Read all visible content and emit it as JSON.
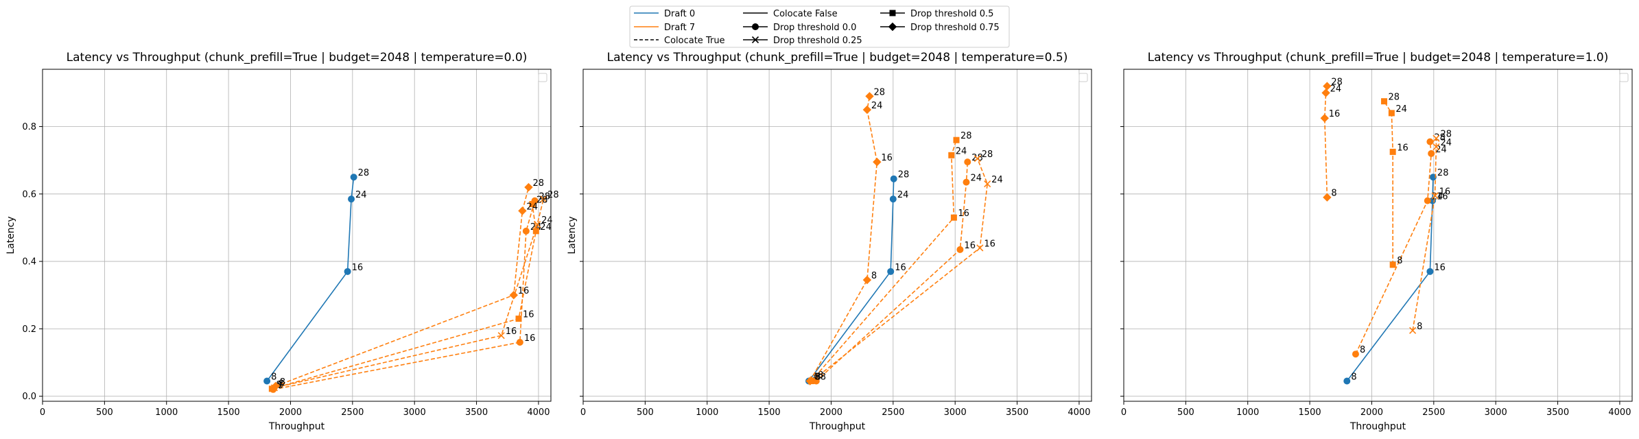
{
  "colors": {
    "draft0": "#1f77b4",
    "draft7": "#ff7f0e",
    "grid": "#b0b0b0",
    "axis": "#000000"
  },
  "legend": {
    "placement": "top-center",
    "items": [
      {
        "label": "Draft 0",
        "kind": "line",
        "color": "#1f77b4",
        "dash": false,
        "marker": null
      },
      {
        "label": "Draft 7",
        "kind": "line",
        "color": "#ff7f0e",
        "dash": false,
        "marker": null
      },
      {
        "label": "Colocate True",
        "kind": "line",
        "color": "#000000",
        "dash": true,
        "marker": null
      },
      {
        "label": "Colocate False",
        "kind": "line",
        "color": "#000000",
        "dash": false,
        "marker": null
      },
      {
        "label": "Drop threshold 0.0",
        "kind": "line",
        "color": "#000000",
        "dash": false,
        "marker": "circle"
      },
      {
        "label": "Drop threshold 0.25",
        "kind": "line",
        "color": "#000000",
        "dash": false,
        "marker": "x"
      },
      {
        "label": "Drop threshold 0.5",
        "kind": "line",
        "color": "#000000",
        "dash": false,
        "marker": "square"
      },
      {
        "label": "Drop threshold 0.75",
        "kind": "line",
        "color": "#000000",
        "dash": false,
        "marker": "diamond"
      }
    ]
  },
  "chart_data": [
    {
      "type": "line",
      "title": "Latency vs Throughput (chunk_prefill=True | budget=2048 | temperature=0.0)",
      "xlabel": "Throughput",
      "ylabel": "Latency",
      "xlim": [
        0,
        4100
      ],
      "ylim": [
        -0.015,
        0.97
      ],
      "xticks": [
        0,
        500,
        1000,
        1500,
        2000,
        2500,
        3000,
        3500,
        4000
      ],
      "yticks": [
        0.0,
        0.2,
        0.4,
        0.6,
        0.8
      ],
      "ytick_labels": [
        "0.0",
        "0.2",
        "0.4",
        "0.6",
        "0.8"
      ],
      "show_ylabel": true,
      "show_yticklabels": true,
      "grid": true,
      "series": [
        {
          "color": "draft0",
          "dashed": false,
          "marker": "circle",
          "points": [
            [
              1810,
              0.045
            ],
            [
              2460,
              0.37
            ],
            [
              2490,
              0.585
            ],
            [
              2510,
              0.65
            ]
          ],
          "labels": [
            "8",
            "16",
            "24",
            "28"
          ]
        },
        {
          "color": "draft7",
          "dashed": true,
          "marker": "circle",
          "points": [
            [
              1860,
              0.02
            ],
            [
              3850,
              0.16
            ],
            [
              3900,
              0.49
            ],
            [
              3970,
              0.58
            ]
          ],
          "labels": [
            "8",
            "16",
            "24",
            "28"
          ]
        },
        {
          "color": "draft7",
          "dashed": true,
          "marker": "x",
          "points": [
            [
              1870,
              0.025
            ],
            [
              3700,
              0.18
            ],
            [
              3990,
              0.51
            ],
            [
              4040,
              0.585
            ]
          ],
          "labels": [
            "8",
            "16",
            "24",
            "28"
          ]
        },
        {
          "color": "draft7",
          "dashed": true,
          "marker": "square",
          "points": [
            [
              1850,
              0.022
            ],
            [
              3840,
              0.23
            ],
            [
              3980,
              0.49
            ],
            [
              3950,
              0.57
            ]
          ],
          "labels": [
            "8",
            "16",
            "24",
            "28"
          ]
        },
        {
          "color": "draft7",
          "dashed": true,
          "marker": "diamond",
          "points": [
            [
              1880,
              0.03
            ],
            [
              3800,
              0.3
            ],
            [
              3870,
              0.55
            ],
            [
              3920,
              0.62
            ]
          ],
          "labels": [
            "8",
            "16",
            "24",
            "28"
          ]
        }
      ]
    },
    {
      "type": "line",
      "title": "Latency vs Throughput (chunk_prefill=True | budget=2048 | temperature=0.5)",
      "xlabel": "Throughput",
      "ylabel": "Latency",
      "xlim": [
        0,
        4100
      ],
      "ylim": [
        -0.015,
        0.97
      ],
      "xticks": [
        0,
        500,
        1000,
        1500,
        2000,
        2500,
        3000,
        3500,
        4000
      ],
      "yticks": [
        0.0,
        0.2,
        0.4,
        0.6,
        0.8
      ],
      "ytick_labels": [],
      "show_ylabel": true,
      "show_yticklabels": false,
      "grid": true,
      "series": [
        {
          "color": "draft0",
          "dashed": false,
          "marker": "circle",
          "points": [
            [
              1820,
              0.045
            ],
            [
              2480,
              0.37
            ],
            [
              2500,
              0.585
            ],
            [
              2505,
              0.645
            ]
          ],
          "labels": [
            "8",
            "16",
            "24",
            "28"
          ]
        },
        {
          "color": "draft7",
          "dashed": true,
          "marker": "circle",
          "points": [
            [
              1880,
              0.045
            ],
            [
              3040,
              0.435
            ],
            [
              3090,
              0.635
            ],
            [
              3100,
              0.695
            ]
          ],
          "labels": [
            "8",
            "16",
            "24",
            "28"
          ]
        },
        {
          "color": "draft7",
          "dashed": true,
          "marker": "x",
          "points": [
            [
              1860,
              0.05
            ],
            [
              3200,
              0.44
            ],
            [
              3260,
              0.63
            ],
            [
              3180,
              0.705
            ]
          ],
          "labels": [
            "8",
            "16",
            "24",
            "28"
          ]
        },
        {
          "color": "draft7",
          "dashed": true,
          "marker": "square",
          "points": [
            [
              1840,
              0.045
            ],
            [
              2990,
              0.53
            ],
            [
              2970,
              0.715
            ],
            [
              3010,
              0.76
            ]
          ],
          "labels": [
            "8",
            "16",
            "24",
            "28"
          ]
        },
        {
          "color": "draft7",
          "dashed": true,
          "marker": "diamond",
          "points": [
            [
              1830,
              0.045
            ],
            [
              2290,
              0.345
            ],
            [
              2370,
              0.695
            ],
            [
              2290,
              0.85
            ],
            [
              2310,
              0.89
            ]
          ],
          "labels": [
            "8",
            "8",
            "16",
            "24",
            "28"
          ]
        }
      ]
    },
    {
      "type": "line",
      "title": "Latency vs Throughput (chunk_prefill=True | budget=2048 | temperature=1.0)",
      "xlabel": "Throughput",
      "ylabel": "Latency",
      "xlim": [
        0,
        4100
      ],
      "ylim": [
        -0.015,
        0.97
      ],
      "xticks": [
        0,
        500,
        1000,
        1500,
        2000,
        2500,
        3000,
        3500,
        4000
      ],
      "yticks": [
        0.0,
        0.2,
        0.4,
        0.6,
        0.8
      ],
      "ytick_labels": [],
      "show_ylabel": false,
      "show_yticklabels": false,
      "grid": true,
      "series": [
        {
          "color": "draft0",
          "dashed": false,
          "marker": "circle",
          "points": [
            [
              1800,
              0.045
            ],
            [
              2470,
              0.37
            ],
            [
              2490,
              0.58
            ],
            [
              2495,
              0.65
            ]
          ],
          "labels": [
            "8",
            "16",
            "16",
            "28"
          ]
        },
        {
          "color": "draft7",
          "dashed": true,
          "marker": "circle",
          "points": [
            [
              1870,
              0.125
            ],
            [
              2450,
              0.58
            ],
            [
              2480,
              0.72
            ],
            [
              2470,
              0.755
            ]
          ],
          "labels": [
            "8",
            "24",
            "24",
            "28"
          ]
        },
        {
          "color": "draft7",
          "dashed": true,
          "marker": "x",
          "points": [
            [
              2330,
              0.195
            ],
            [
              2510,
              0.595
            ],
            [
              2520,
              0.74
            ],
            [
              2520,
              0.765
            ]
          ],
          "labels": [
            "8",
            "16",
            "24",
            "28"
          ]
        },
        {
          "color": "draft7",
          "dashed": true,
          "marker": "square",
          "points": [
            [
              2170,
              0.39
            ],
            [
              2170,
              0.725
            ],
            [
              2160,
              0.84
            ],
            [
              2100,
              0.875
            ]
          ],
          "labels": [
            "8",
            "16",
            "24",
            "28"
          ]
        },
        {
          "color": "draft7",
          "dashed": true,
          "marker": "diamond",
          "points": [
            [
              1640,
              0.59
            ],
            [
              1620,
              0.825
            ],
            [
              1630,
              0.9
            ],
            [
              1640,
              0.92
            ]
          ],
          "labels": [
            "8",
            "16",
            "24",
            "28"
          ]
        }
      ]
    }
  ]
}
